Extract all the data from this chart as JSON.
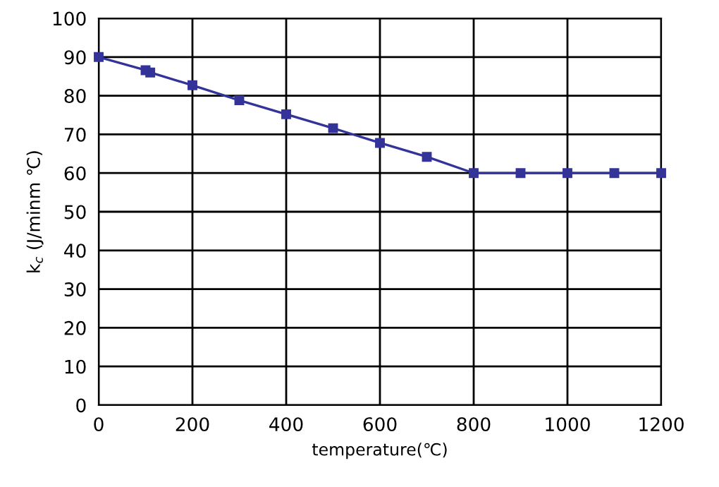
{
  "chart_data": {
    "type": "line",
    "xlabel": "temperature(℃)",
    "ylabel": "k$_{c}$ (J/minm ℃)",
    "x": [
      0,
      100,
      110,
      200,
      300,
      400,
      500,
      600,
      700,
      800,
      900,
      1000,
      1100,
      1200
    ],
    "series": [
      {
        "color": "#333399",
        "values": [
          90,
          86.6,
          86,
          82.7,
          78.8,
          75.2,
          71.6,
          67.8,
          64.2,
          60,
          60,
          60,
          60,
          60
        ]
      }
    ],
    "xlim": [
      0,
      1200
    ],
    "xticks": [
      0,
      200,
      400,
      600,
      800,
      1000,
      1200
    ],
    "ylim": [
      0,
      100
    ],
    "yticks": [
      0,
      10,
      20,
      30,
      40,
      50,
      60,
      70,
      80,
      90,
      100
    ],
    "grid": true,
    "marker": "square",
    "line_style": "solid"
  }
}
